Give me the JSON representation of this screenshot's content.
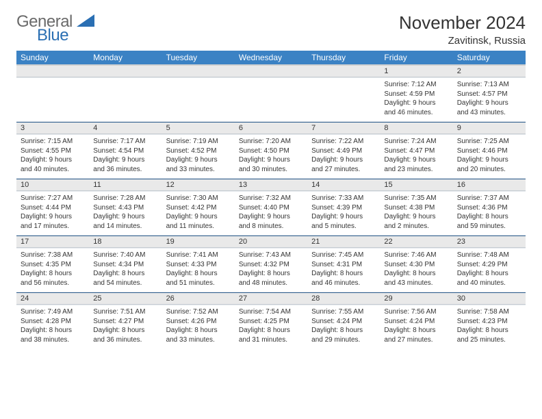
{
  "brand": {
    "word1": "General",
    "word2": "Blue"
  },
  "title": "November 2024",
  "location": "Zavitinsk, Russia",
  "colors": {
    "header_bg": "#3b82c4",
    "header_text": "#ffffff",
    "daynum_bg": "#e9e9e9",
    "text": "#333333",
    "rule": "#2f5f8f"
  },
  "weekdays": [
    "Sunday",
    "Monday",
    "Tuesday",
    "Wednesday",
    "Thursday",
    "Friday",
    "Saturday"
  ],
  "weeks": [
    [
      null,
      null,
      null,
      null,
      null,
      {
        "n": "1",
        "sr": "Sunrise: 7:12 AM",
        "ss": "Sunset: 4:59 PM",
        "dl": "Daylight: 9 hours and 46 minutes."
      },
      {
        "n": "2",
        "sr": "Sunrise: 7:13 AM",
        "ss": "Sunset: 4:57 PM",
        "dl": "Daylight: 9 hours and 43 minutes."
      }
    ],
    [
      {
        "n": "3",
        "sr": "Sunrise: 7:15 AM",
        "ss": "Sunset: 4:55 PM",
        "dl": "Daylight: 9 hours and 40 minutes."
      },
      {
        "n": "4",
        "sr": "Sunrise: 7:17 AM",
        "ss": "Sunset: 4:54 PM",
        "dl": "Daylight: 9 hours and 36 minutes."
      },
      {
        "n": "5",
        "sr": "Sunrise: 7:19 AM",
        "ss": "Sunset: 4:52 PM",
        "dl": "Daylight: 9 hours and 33 minutes."
      },
      {
        "n": "6",
        "sr": "Sunrise: 7:20 AM",
        "ss": "Sunset: 4:50 PM",
        "dl": "Daylight: 9 hours and 30 minutes."
      },
      {
        "n": "7",
        "sr": "Sunrise: 7:22 AM",
        "ss": "Sunset: 4:49 PM",
        "dl": "Daylight: 9 hours and 27 minutes."
      },
      {
        "n": "8",
        "sr": "Sunrise: 7:24 AM",
        "ss": "Sunset: 4:47 PM",
        "dl": "Daylight: 9 hours and 23 minutes."
      },
      {
        "n": "9",
        "sr": "Sunrise: 7:25 AM",
        "ss": "Sunset: 4:46 PM",
        "dl": "Daylight: 9 hours and 20 minutes."
      }
    ],
    [
      {
        "n": "10",
        "sr": "Sunrise: 7:27 AM",
        "ss": "Sunset: 4:44 PM",
        "dl": "Daylight: 9 hours and 17 minutes."
      },
      {
        "n": "11",
        "sr": "Sunrise: 7:28 AM",
        "ss": "Sunset: 4:43 PM",
        "dl": "Daylight: 9 hours and 14 minutes."
      },
      {
        "n": "12",
        "sr": "Sunrise: 7:30 AM",
        "ss": "Sunset: 4:42 PM",
        "dl": "Daylight: 9 hours and 11 minutes."
      },
      {
        "n": "13",
        "sr": "Sunrise: 7:32 AM",
        "ss": "Sunset: 4:40 PM",
        "dl": "Daylight: 9 hours and 8 minutes."
      },
      {
        "n": "14",
        "sr": "Sunrise: 7:33 AM",
        "ss": "Sunset: 4:39 PM",
        "dl": "Daylight: 9 hours and 5 minutes."
      },
      {
        "n": "15",
        "sr": "Sunrise: 7:35 AM",
        "ss": "Sunset: 4:38 PM",
        "dl": "Daylight: 9 hours and 2 minutes."
      },
      {
        "n": "16",
        "sr": "Sunrise: 7:37 AM",
        "ss": "Sunset: 4:36 PM",
        "dl": "Daylight: 8 hours and 59 minutes."
      }
    ],
    [
      {
        "n": "17",
        "sr": "Sunrise: 7:38 AM",
        "ss": "Sunset: 4:35 PM",
        "dl": "Daylight: 8 hours and 56 minutes."
      },
      {
        "n": "18",
        "sr": "Sunrise: 7:40 AM",
        "ss": "Sunset: 4:34 PM",
        "dl": "Daylight: 8 hours and 54 minutes."
      },
      {
        "n": "19",
        "sr": "Sunrise: 7:41 AM",
        "ss": "Sunset: 4:33 PM",
        "dl": "Daylight: 8 hours and 51 minutes."
      },
      {
        "n": "20",
        "sr": "Sunrise: 7:43 AM",
        "ss": "Sunset: 4:32 PM",
        "dl": "Daylight: 8 hours and 48 minutes."
      },
      {
        "n": "21",
        "sr": "Sunrise: 7:45 AM",
        "ss": "Sunset: 4:31 PM",
        "dl": "Daylight: 8 hours and 46 minutes."
      },
      {
        "n": "22",
        "sr": "Sunrise: 7:46 AM",
        "ss": "Sunset: 4:30 PM",
        "dl": "Daylight: 8 hours and 43 minutes."
      },
      {
        "n": "23",
        "sr": "Sunrise: 7:48 AM",
        "ss": "Sunset: 4:29 PM",
        "dl": "Daylight: 8 hours and 40 minutes."
      }
    ],
    [
      {
        "n": "24",
        "sr": "Sunrise: 7:49 AM",
        "ss": "Sunset: 4:28 PM",
        "dl": "Daylight: 8 hours and 38 minutes."
      },
      {
        "n": "25",
        "sr": "Sunrise: 7:51 AM",
        "ss": "Sunset: 4:27 PM",
        "dl": "Daylight: 8 hours and 36 minutes."
      },
      {
        "n": "26",
        "sr": "Sunrise: 7:52 AM",
        "ss": "Sunset: 4:26 PM",
        "dl": "Daylight: 8 hours and 33 minutes."
      },
      {
        "n": "27",
        "sr": "Sunrise: 7:54 AM",
        "ss": "Sunset: 4:25 PM",
        "dl": "Daylight: 8 hours and 31 minutes."
      },
      {
        "n": "28",
        "sr": "Sunrise: 7:55 AM",
        "ss": "Sunset: 4:24 PM",
        "dl": "Daylight: 8 hours and 29 minutes."
      },
      {
        "n": "29",
        "sr": "Sunrise: 7:56 AM",
        "ss": "Sunset: 4:24 PM",
        "dl": "Daylight: 8 hours and 27 minutes."
      },
      {
        "n": "30",
        "sr": "Sunrise: 7:58 AM",
        "ss": "Sunset: 4:23 PM",
        "dl": "Daylight: 8 hours and 25 minutes."
      }
    ]
  ]
}
